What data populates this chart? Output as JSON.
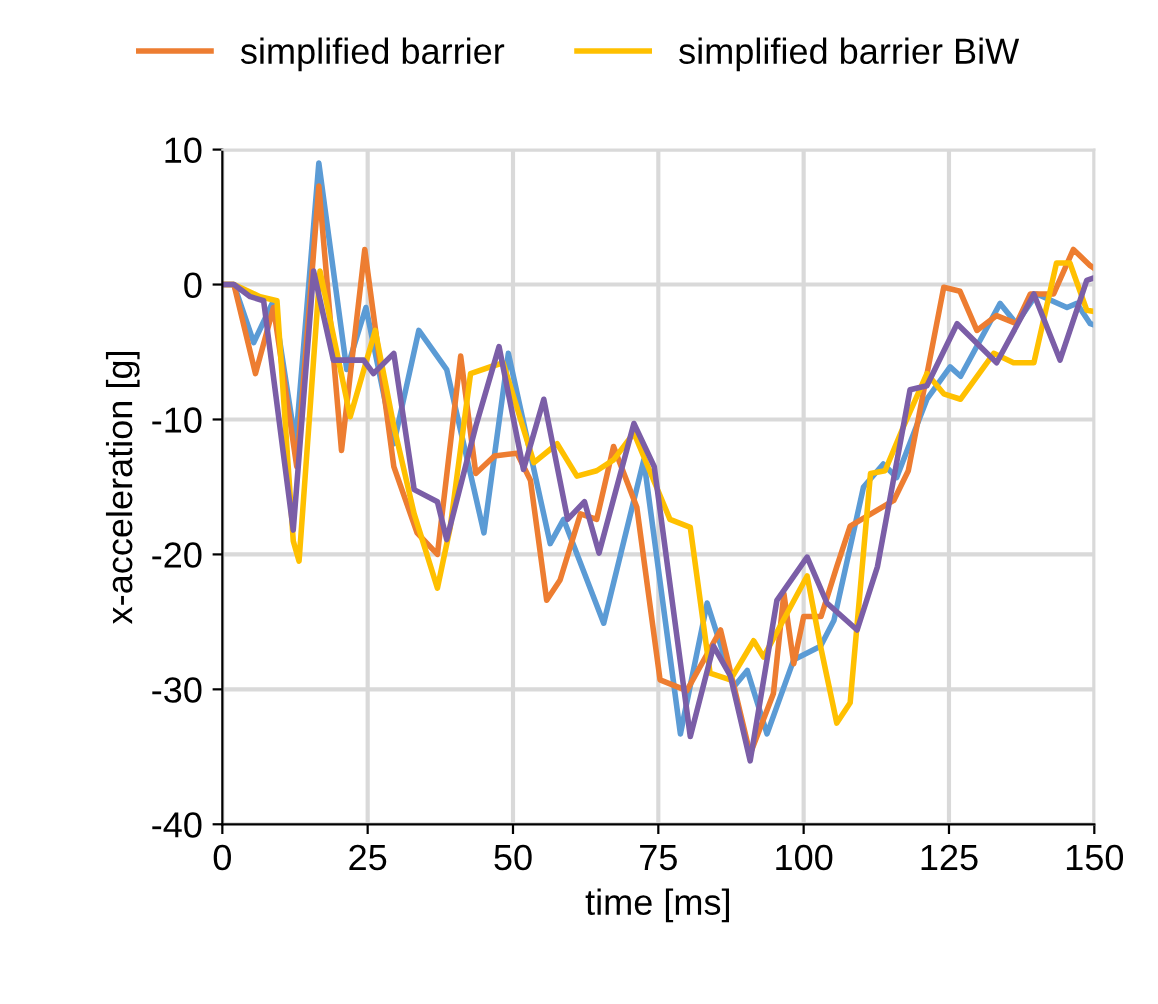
{
  "chart_data": {
    "type": "line",
    "xlabel": "time [ms]",
    "ylabel": "x-acceleration [g]",
    "xlim": [
      0,
      150
    ],
    "xticks": [
      0,
      25,
      50,
      75,
      100,
      125,
      150
    ],
    "ylim": [
      -40,
      10
    ],
    "yticks": [
      -40,
      -30,
      -20,
      -10,
      0,
      10
    ],
    "grid": true,
    "legend": "top",
    "marker": "none",
    "line_style": "solid",
    "series": [
      {
        "color": "#5b9bd5",
        "x": [
          0,
          2,
          5.4,
          8.8,
          12.6,
          16.6,
          21.4,
          24.7,
          29.5,
          33.8,
          38.6,
          45,
          49.2,
          56.4,
          58.7,
          65.6,
          72.5,
          78.8,
          83.4,
          88,
          90.3,
          93.7,
          98.3,
          102.9,
          105.2,
          110.3,
          113.7,
          116,
          121.2,
          125.2,
          127,
          133.8,
          136.6,
          140.1,
          145.3,
          147,
          149.3,
          150
        ],
        "values": [
          0,
          0,
          -4.3,
          -1.2,
          -11.8,
          9.0,
          -6.3,
          -1.7,
          -11.8,
          -3.4,
          -6.3,
          -18.4,
          -5.1,
          -19.2,
          -17.4,
          -25.1,
          -13.0,
          -33.3,
          -23.6,
          -29.8,
          -28.6,
          -33.3,
          -27.8,
          -26.8,
          -24.9,
          -15.0,
          -13.3,
          -14.3,
          -8.5,
          -6.1,
          -6.8,
          -1.4,
          -2.9,
          -0.7,
          -1.7,
          -1.4,
          -2.9,
          -3.0
        ]
      },
      {
        "name": "simplified barrier",
        "color": "#ed7d31",
        "x": [
          0,
          2,
          5.7,
          8.8,
          12.8,
          16.6,
          20.5,
          24.5,
          29.5,
          33.5,
          37,
          41,
          43.6,
          46.8,
          50.7,
          53,
          55.8,
          58.1,
          61.6,
          64.4,
          67.3,
          71.3,
          75.3,
          79.9,
          85.7,
          90.8,
          94.8,
          96.6,
          98.3,
          100,
          103,
          105.7,
          108,
          115.5,
          118,
          124.1,
          126.9,
          129.8,
          133.2,
          136.6,
          139,
          143,
          146.4,
          149.3,
          150
        ],
        "values": [
          0,
          0,
          -6.6,
          -1.7,
          -13.5,
          7.3,
          -12.3,
          2.6,
          -13.5,
          -18.4,
          -20,
          -5.3,
          -14,
          -12.7,
          -12.5,
          -14.5,
          -23.4,
          -21.9,
          -17,
          -17.4,
          -12,
          -16.5,
          -29.3,
          -30.1,
          -25.6,
          -34.8,
          -30.3,
          -22.9,
          -28.1,
          -24.6,
          -24.6,
          -20.9,
          -17.9,
          -16,
          -13.8,
          -0.2,
          -0.5,
          -3.4,
          -2.3,
          -2.9,
          -0.7,
          -0.7,
          2.6,
          1.4,
          1.2
        ]
      },
      {
        "name": "simplified barrier BiW",
        "color": "#ffc000",
        "x": [
          0,
          2,
          6.5,
          9.4,
          12.2,
          13.2,
          16.8,
          22,
          26.3,
          29.5,
          33,
          37,
          39.2,
          42.7,
          46.8,
          48.3,
          53.6,
          57.6,
          61,
          64.4,
          67.3,
          70.8,
          77,
          80.5,
          83.9,
          87.4,
          91.4,
          93.1,
          100.6,
          103,
          105.7,
          108,
          111.5,
          114,
          117.2,
          121.2,
          124.1,
          127,
          132.7,
          136.1,
          139.6,
          143.5,
          145.8,
          148.7,
          150
        ],
        "values": [
          0,
          0,
          -0.9,
          -1.2,
          -19,
          -20.5,
          1.0,
          -9.8,
          -3.4,
          -10.5,
          -17,
          -22.5,
          -18,
          -6.6,
          -6.0,
          -5.8,
          -13.2,
          -11.8,
          -14.2,
          -13.8,
          -13,
          -11,
          -17.4,
          -18,
          -28.8,
          -29.3,
          -26.4,
          -27.6,
          -21.6,
          -27,
          -32.5,
          -31,
          -14,
          -13.8,
          -10.5,
          -6.6,
          -8.1,
          -8.5,
          -5.1,
          -5.8,
          -5.8,
          1.6,
          1.6,
          -1.9,
          -2.0
        ]
      },
      {
        "color": "#7b5ea7",
        "x": [
          0,
          2,
          4.8,
          7.1,
          12.2,
          15.7,
          19.1,
          24.3,
          26,
          29.5,
          33,
          37,
          38.6,
          43.6,
          47.6,
          51.8,
          55.3,
          59.4,
          62.3,
          64.8,
          70.8,
          74.3,
          80.5,
          84.5,
          87.4,
          90.8,
          95.4,
          100.6,
          104,
          109.2,
          112.7,
          118.3,
          121.2,
          126.4,
          133.2,
          139.6,
          144.1,
          148.7,
          150
        ],
        "values": [
          0,
          0,
          -0.9,
          -1.2,
          -18.2,
          1.0,
          -5.6,
          -5.6,
          -6.6,
          -5.1,
          -15.2,
          -16.1,
          -18.9,
          -10.5,
          -4.6,
          -13.7,
          -8.5,
          -17.4,
          -16.1,
          -19.9,
          -10.3,
          -13.5,
          -33.5,
          -26.8,
          -29,
          -35.3,
          -23.4,
          -20.2,
          -23.6,
          -25.6,
          -20.9,
          -7.8,
          -7.5,
          -2.9,
          -5.8,
          -0.7,
          -5.6,
          0.3,
          0.5
        ]
      }
    ]
  }
}
